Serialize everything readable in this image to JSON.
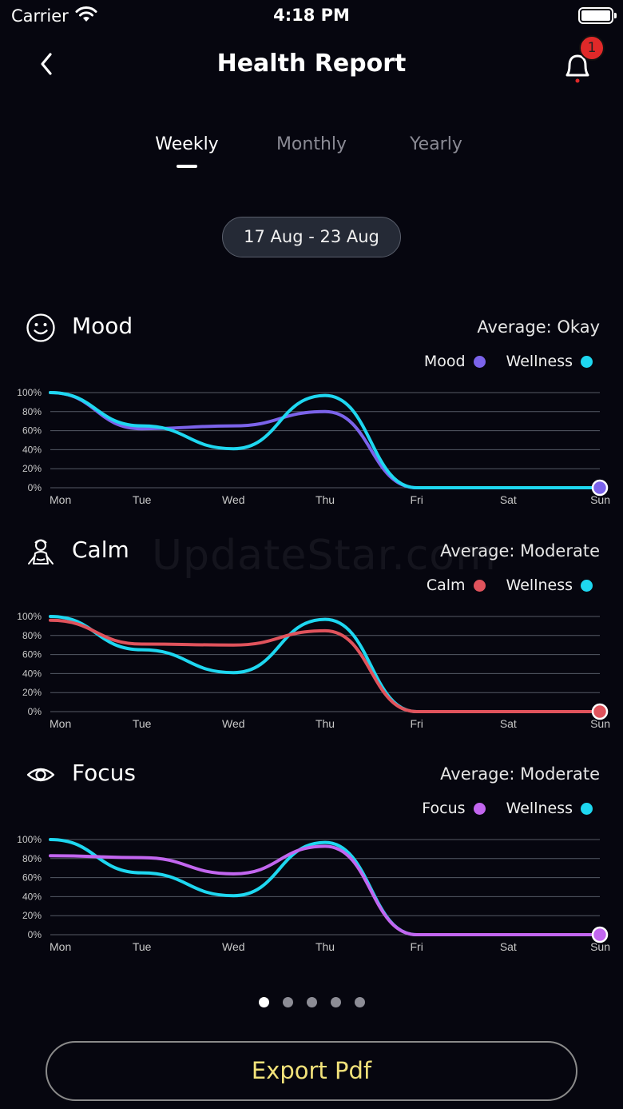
{
  "status_bar": {
    "carrier": "Carrier",
    "time": "4:18 PM"
  },
  "header": {
    "title": "Health Report",
    "notification_count": "1"
  },
  "tabs": [
    {
      "label": "Weekly",
      "active": true
    },
    {
      "label": "Monthly",
      "active": false
    },
    {
      "label": "Yearly",
      "active": false
    }
  ],
  "date_range": "17 Aug - 23 Aug",
  "watermark": "UpdateStar.com",
  "sections": [
    {
      "id": "mood",
      "title": "Mood",
      "icon": "smiley-icon",
      "average": "Average: Okay",
      "legend": [
        {
          "label": "Mood",
          "color": "#7b63ea"
        },
        {
          "label": "Wellness",
          "color": "#1ed7f0"
        }
      ]
    },
    {
      "id": "calm",
      "title": "Calm",
      "icon": "meditation-icon",
      "average": "Average: Moderate",
      "legend": [
        {
          "label": "Calm",
          "color": "#e0535c"
        },
        {
          "label": "Wellness",
          "color": "#1ed7f0"
        }
      ]
    },
    {
      "id": "focus",
      "title": "Focus",
      "icon": "eye-icon",
      "average": "Average: Moderate",
      "legend": [
        {
          "label": "Focus",
          "color": "#c266ef"
        },
        {
          "label": "Wellness",
          "color": "#1ed7f0"
        }
      ]
    }
  ],
  "chart_data": [
    {
      "type": "line",
      "categories": [
        "Mon",
        "Tue",
        "Wed",
        "Thu",
        "Fri",
        "Sat",
        "Sun"
      ],
      "y_ticks": [
        "100%",
        "80%",
        "60%",
        "40%",
        "20%",
        "0%"
      ],
      "ylim": [
        0,
        100
      ],
      "grid": true,
      "series": [
        {
          "name": "Mood",
          "color": "#7b63ea",
          "values": [
            100,
            62,
            65,
            80,
            0,
            0,
            0
          ]
        },
        {
          "name": "Wellness",
          "color": "#1ed7f0",
          "values": [
            100,
            65,
            41,
            97,
            0,
            0,
            0
          ]
        }
      ]
    },
    {
      "type": "line",
      "categories": [
        "Mon",
        "Tue",
        "Wed",
        "Thu",
        "Fri",
        "Sat",
        "Sun"
      ],
      "y_ticks": [
        "100%",
        "80%",
        "60%",
        "40%",
        "20%",
        "0%"
      ],
      "ylim": [
        0,
        100
      ],
      "grid": true,
      "series": [
        {
          "name": "Wellness",
          "color": "#1ed7f0",
          "values": [
            100,
            65,
            41,
            97,
            0,
            0,
            0
          ]
        },
        {
          "name": "Calm",
          "color": "#e0535c",
          "values": [
            96,
            71,
            70,
            85,
            0,
            0,
            0
          ]
        }
      ]
    },
    {
      "type": "line",
      "categories": [
        "Mon",
        "Tue",
        "Wed",
        "Thu",
        "Fri",
        "Sat",
        "Sun"
      ],
      "y_ticks": [
        "100%",
        "80%",
        "60%",
        "40%",
        "20%",
        "0%"
      ],
      "ylim": [
        0,
        100
      ],
      "grid": true,
      "series": [
        {
          "name": "Wellness",
          "color": "#1ed7f0",
          "values": [
            100,
            65,
            41,
            97,
            0,
            0,
            0
          ]
        },
        {
          "name": "Focus",
          "color": "#c266ef",
          "values": [
            83,
            81,
            64,
            93,
            0,
            0,
            0
          ]
        }
      ]
    }
  ],
  "pager": {
    "count": 5,
    "active_index": 0
  },
  "export_button": "Export Pdf"
}
